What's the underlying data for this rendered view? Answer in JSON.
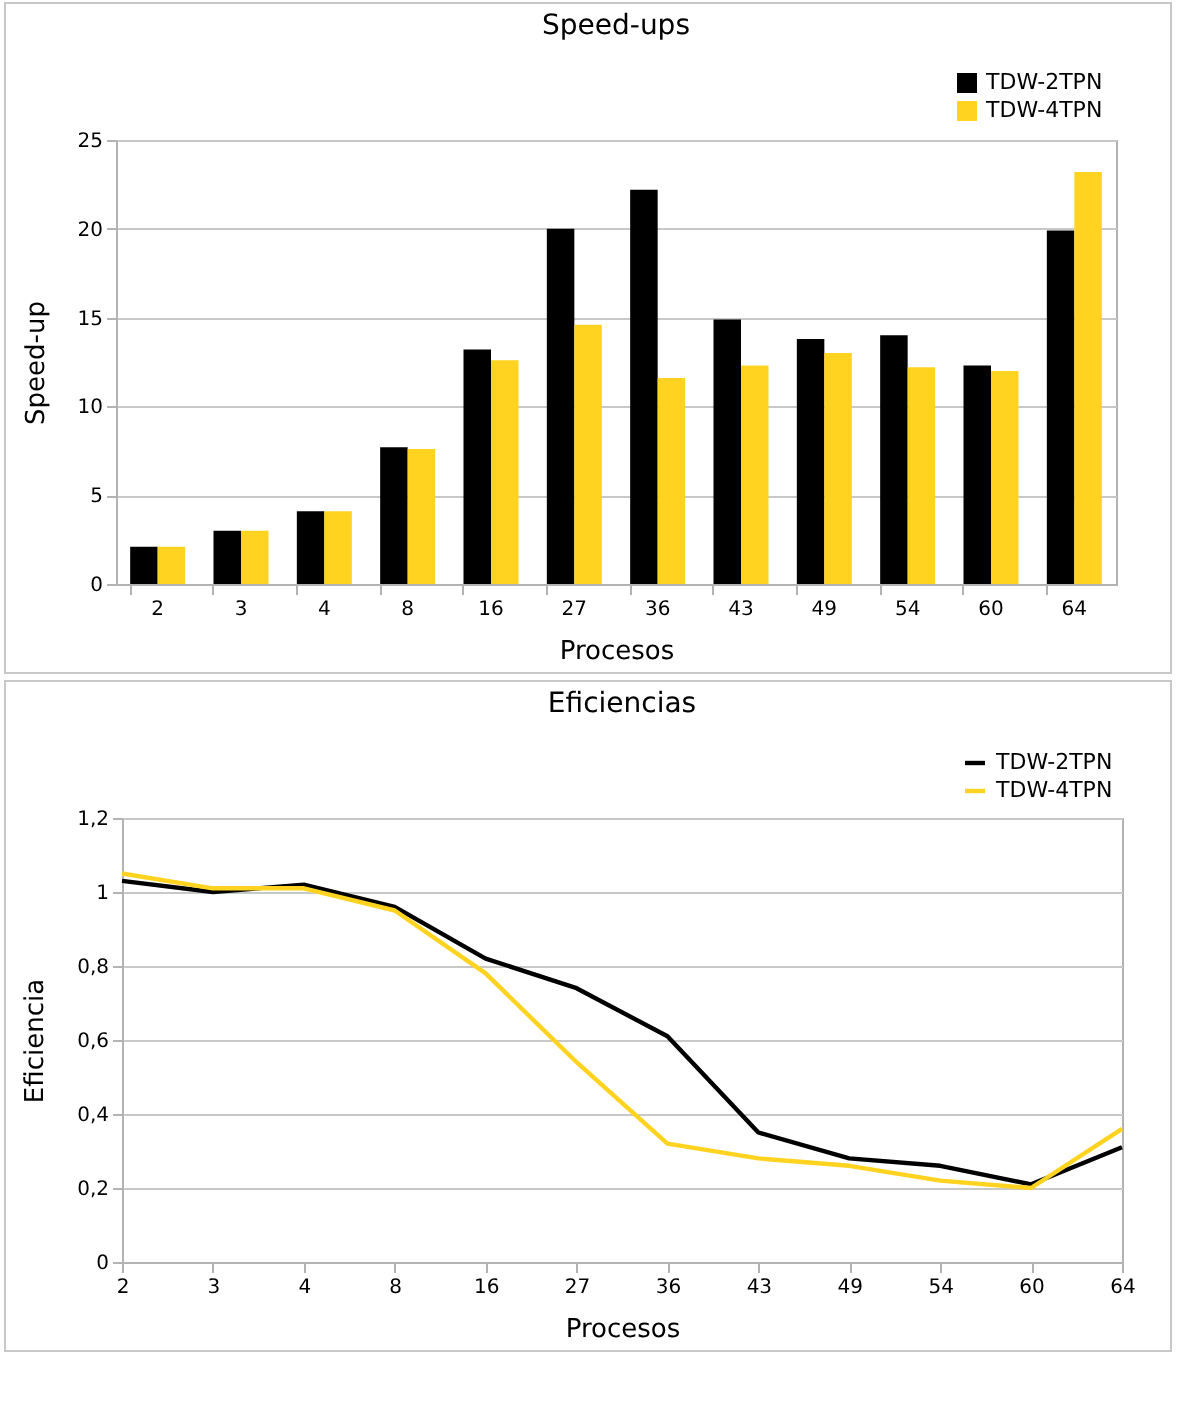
{
  "chart_data": [
    {
      "type": "bar",
      "title": "Speed-ups",
      "xlabel": "Procesos",
      "ylabel": "Speed-up",
      "categories": [
        "2",
        "3",
        "4",
        "8",
        "16",
        "27",
        "36",
        "43",
        "49",
        "54",
        "60",
        "64"
      ],
      "series": [
        {
          "name": "TDW-2TPN",
          "color": "#000000",
          "values": [
            2.1,
            3.0,
            4.1,
            7.7,
            13.2,
            20.0,
            22.2,
            14.9,
            13.8,
            14.0,
            12.3,
            19.9
          ]
        },
        {
          "name": "TDW-4TPN",
          "color": "#ffd320",
          "values": [
            2.1,
            3.0,
            4.1,
            7.6,
            12.6,
            14.6,
            11.6,
            12.3,
            13.0,
            12.2,
            12.0,
            23.2
          ]
        }
      ],
      "ylim": [
        0,
        25
      ],
      "yticks": [
        0,
        5,
        10,
        15,
        20,
        25
      ],
      "grid": "y",
      "legend": "top right"
    },
    {
      "type": "line",
      "title": "Eficiencias",
      "xlabel": "Procesos",
      "ylabel": "Eficiencia",
      "categories": [
        "2",
        "3",
        "4",
        "8",
        "16",
        "27",
        "36",
        "43",
        "49",
        "54",
        "60",
        "64"
      ],
      "series": [
        {
          "name": "TDW-2TPN",
          "color": "#000000",
          "values": [
            1.03,
            1.0,
            1.02,
            0.96,
            0.82,
            0.74,
            0.61,
            0.35,
            0.28,
            0.26,
            0.21,
            0.31
          ]
        },
        {
          "name": "TDW-4TPN",
          "color": "#ffd320",
          "values": [
            1.05,
            1.01,
            1.01,
            0.95,
            0.78,
            0.54,
            0.32,
            0.28,
            0.26,
            0.22,
            0.2,
            0.36
          ]
        }
      ],
      "ylim": [
        0,
        1.2
      ],
      "yticks": [
        0,
        {
          "value": 0.2,
          "label": "0,2"
        },
        {
          "value": 0.4,
          "label": "0,4"
        },
        {
          "value": 0.6,
          "label": "0,6"
        },
        {
          "value": 0.8,
          "label": "0,8"
        },
        1,
        {
          "value": 1.2,
          "label": "1,2"
        }
      ],
      "grid": "y",
      "legend": "top right"
    }
  ]
}
